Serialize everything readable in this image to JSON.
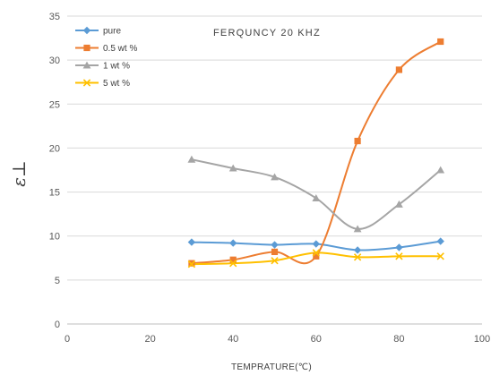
{
  "chart_data": {
    "type": "line",
    "title": "FERQUNCY 20 KHZ",
    "xlabel": "TEMPRATURE(℃)",
    "ylabel": "ε⊥",
    "xlim": [
      0,
      100
    ],
    "ylim": [
      0,
      35
    ],
    "xticks": [
      0,
      20,
      40,
      60,
      80,
      100
    ],
    "yticks": [
      0,
      5,
      10,
      15,
      20,
      25,
      30,
      35
    ],
    "grid": "horizontal",
    "legend_position": "top-left",
    "series": [
      {
        "name": "pure",
        "color": "#5b9bd5",
        "marker": "diamond",
        "x": [
          30,
          40,
          50,
          60,
          70,
          80,
          90
        ],
        "y": [
          9.3,
          9.2,
          9.0,
          9.1,
          8.4,
          8.7,
          9.4
        ]
      },
      {
        "name": "0.5 wt %",
        "color": "#ed7d31",
        "marker": "square",
        "x": [
          30,
          40,
          50,
          60,
          70,
          80,
          90
        ],
        "y": [
          6.9,
          7.3,
          8.2,
          7.7,
          20.8,
          28.9,
          32.1
        ]
      },
      {
        "name": "1 wt %",
        "color": "#a5a5a5",
        "marker": "triangle",
        "x": [
          30,
          40,
          50,
          60,
          70,
          80,
          90
        ],
        "y": [
          18.7,
          17.7,
          16.7,
          14.3,
          10.8,
          13.6,
          17.5
        ]
      },
      {
        "name": "5 wt %",
        "color": "#ffc000",
        "marker": "x",
        "x": [
          30,
          40,
          50,
          60,
          70,
          80,
          90
        ],
        "y": [
          6.8,
          6.9,
          7.2,
          8.1,
          7.6,
          7.7,
          7.7
        ]
      }
    ]
  }
}
